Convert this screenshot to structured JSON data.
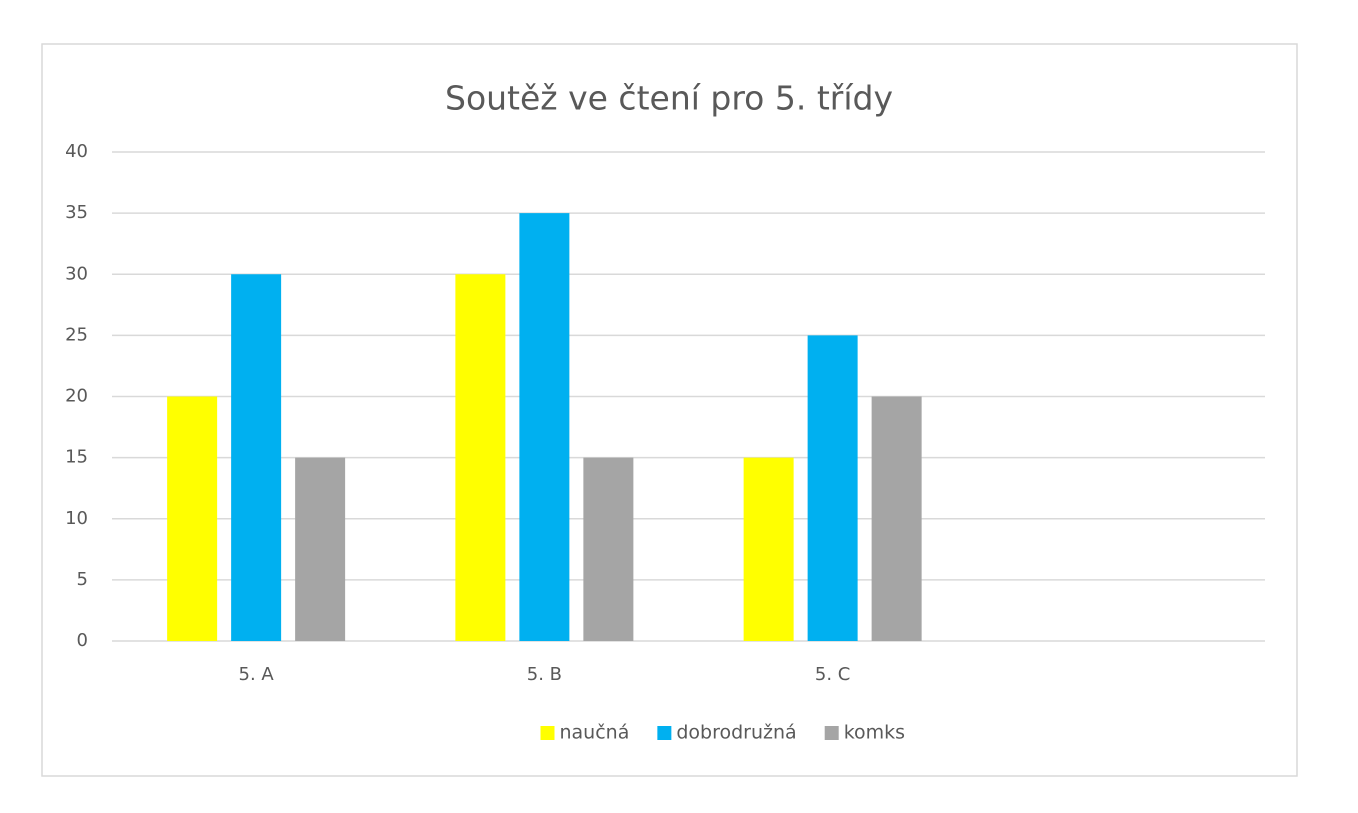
{
  "chart_data": {
    "type": "bar",
    "title": "Soutěž ve čtení pro 5. třídy",
    "categories": [
      "5. A",
      "5. B",
      "5. C",
      null
    ],
    "series": [
      {
        "name": "naučná",
        "color": "#ffff00",
        "values": [
          20,
          30,
          15,
          null
        ]
      },
      {
        "name": "dobrodružná",
        "color": "#00b0f0",
        "values": [
          30,
          35,
          25,
          null
        ]
      },
      {
        "name": "komks",
        "color": "#a5a5a5",
        "values": [
          15,
          15,
          20,
          null
        ]
      }
    ],
    "ylim": [
      0,
      40
    ],
    "yticks": [
      0,
      5,
      10,
      15,
      20,
      25,
      30,
      35,
      40
    ],
    "grid": true,
    "legend": "bottom"
  }
}
